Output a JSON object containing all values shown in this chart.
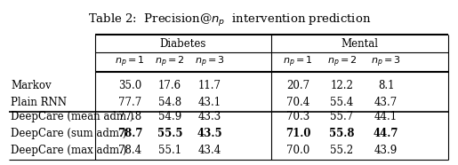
{
  "title": "Table 2:  Precision@$n_p$  intervention prediction",
  "group_headers": [
    "Diabetes",
    "Mental"
  ],
  "sub_headers": [
    "$n_p = 1$",
    "$n_p = 2$",
    "$n_p = 3$",
    "$n_p = 1$",
    "$n_p = 2$",
    "$n_p = 3$"
  ],
  "rows": [
    {
      "label": "Markov",
      "values": [
        "35.0",
        "17.6",
        "11.7",
        "20.7",
        "12.2",
        "8.1"
      ],
      "bold_cols": []
    },
    {
      "label": "Plain RNN",
      "values": [
        "77.7",
        "54.8",
        "43.1",
        "70.4",
        "55.4",
        "43.7"
      ],
      "bold_cols": []
    },
    {
      "label": "DeepCare (mean adm.)",
      "values": [
        "77.8",
        "54.9",
        "43.3",
        "70.3",
        "55.7",
        "44.1"
      ],
      "bold_cols": []
    },
    {
      "label": "DeepCare (sum adm.)",
      "values": [
        "78.7",
        "55.5",
        "43.5",
        "71.0",
        "55.8",
        "44.7"
      ],
      "bold_cols": [
        0,
        1,
        2,
        3,
        4,
        5
      ]
    },
    {
      "label": "DeepCare (max adm.)",
      "values": [
        "78.4",
        "55.1",
        "43.4",
        "70.0",
        "55.2",
        "43.9"
      ],
      "bold_cols": []
    }
  ],
  "bg_color": "#ffffff",
  "font_size": 8.5,
  "title_font_size": 9.5
}
